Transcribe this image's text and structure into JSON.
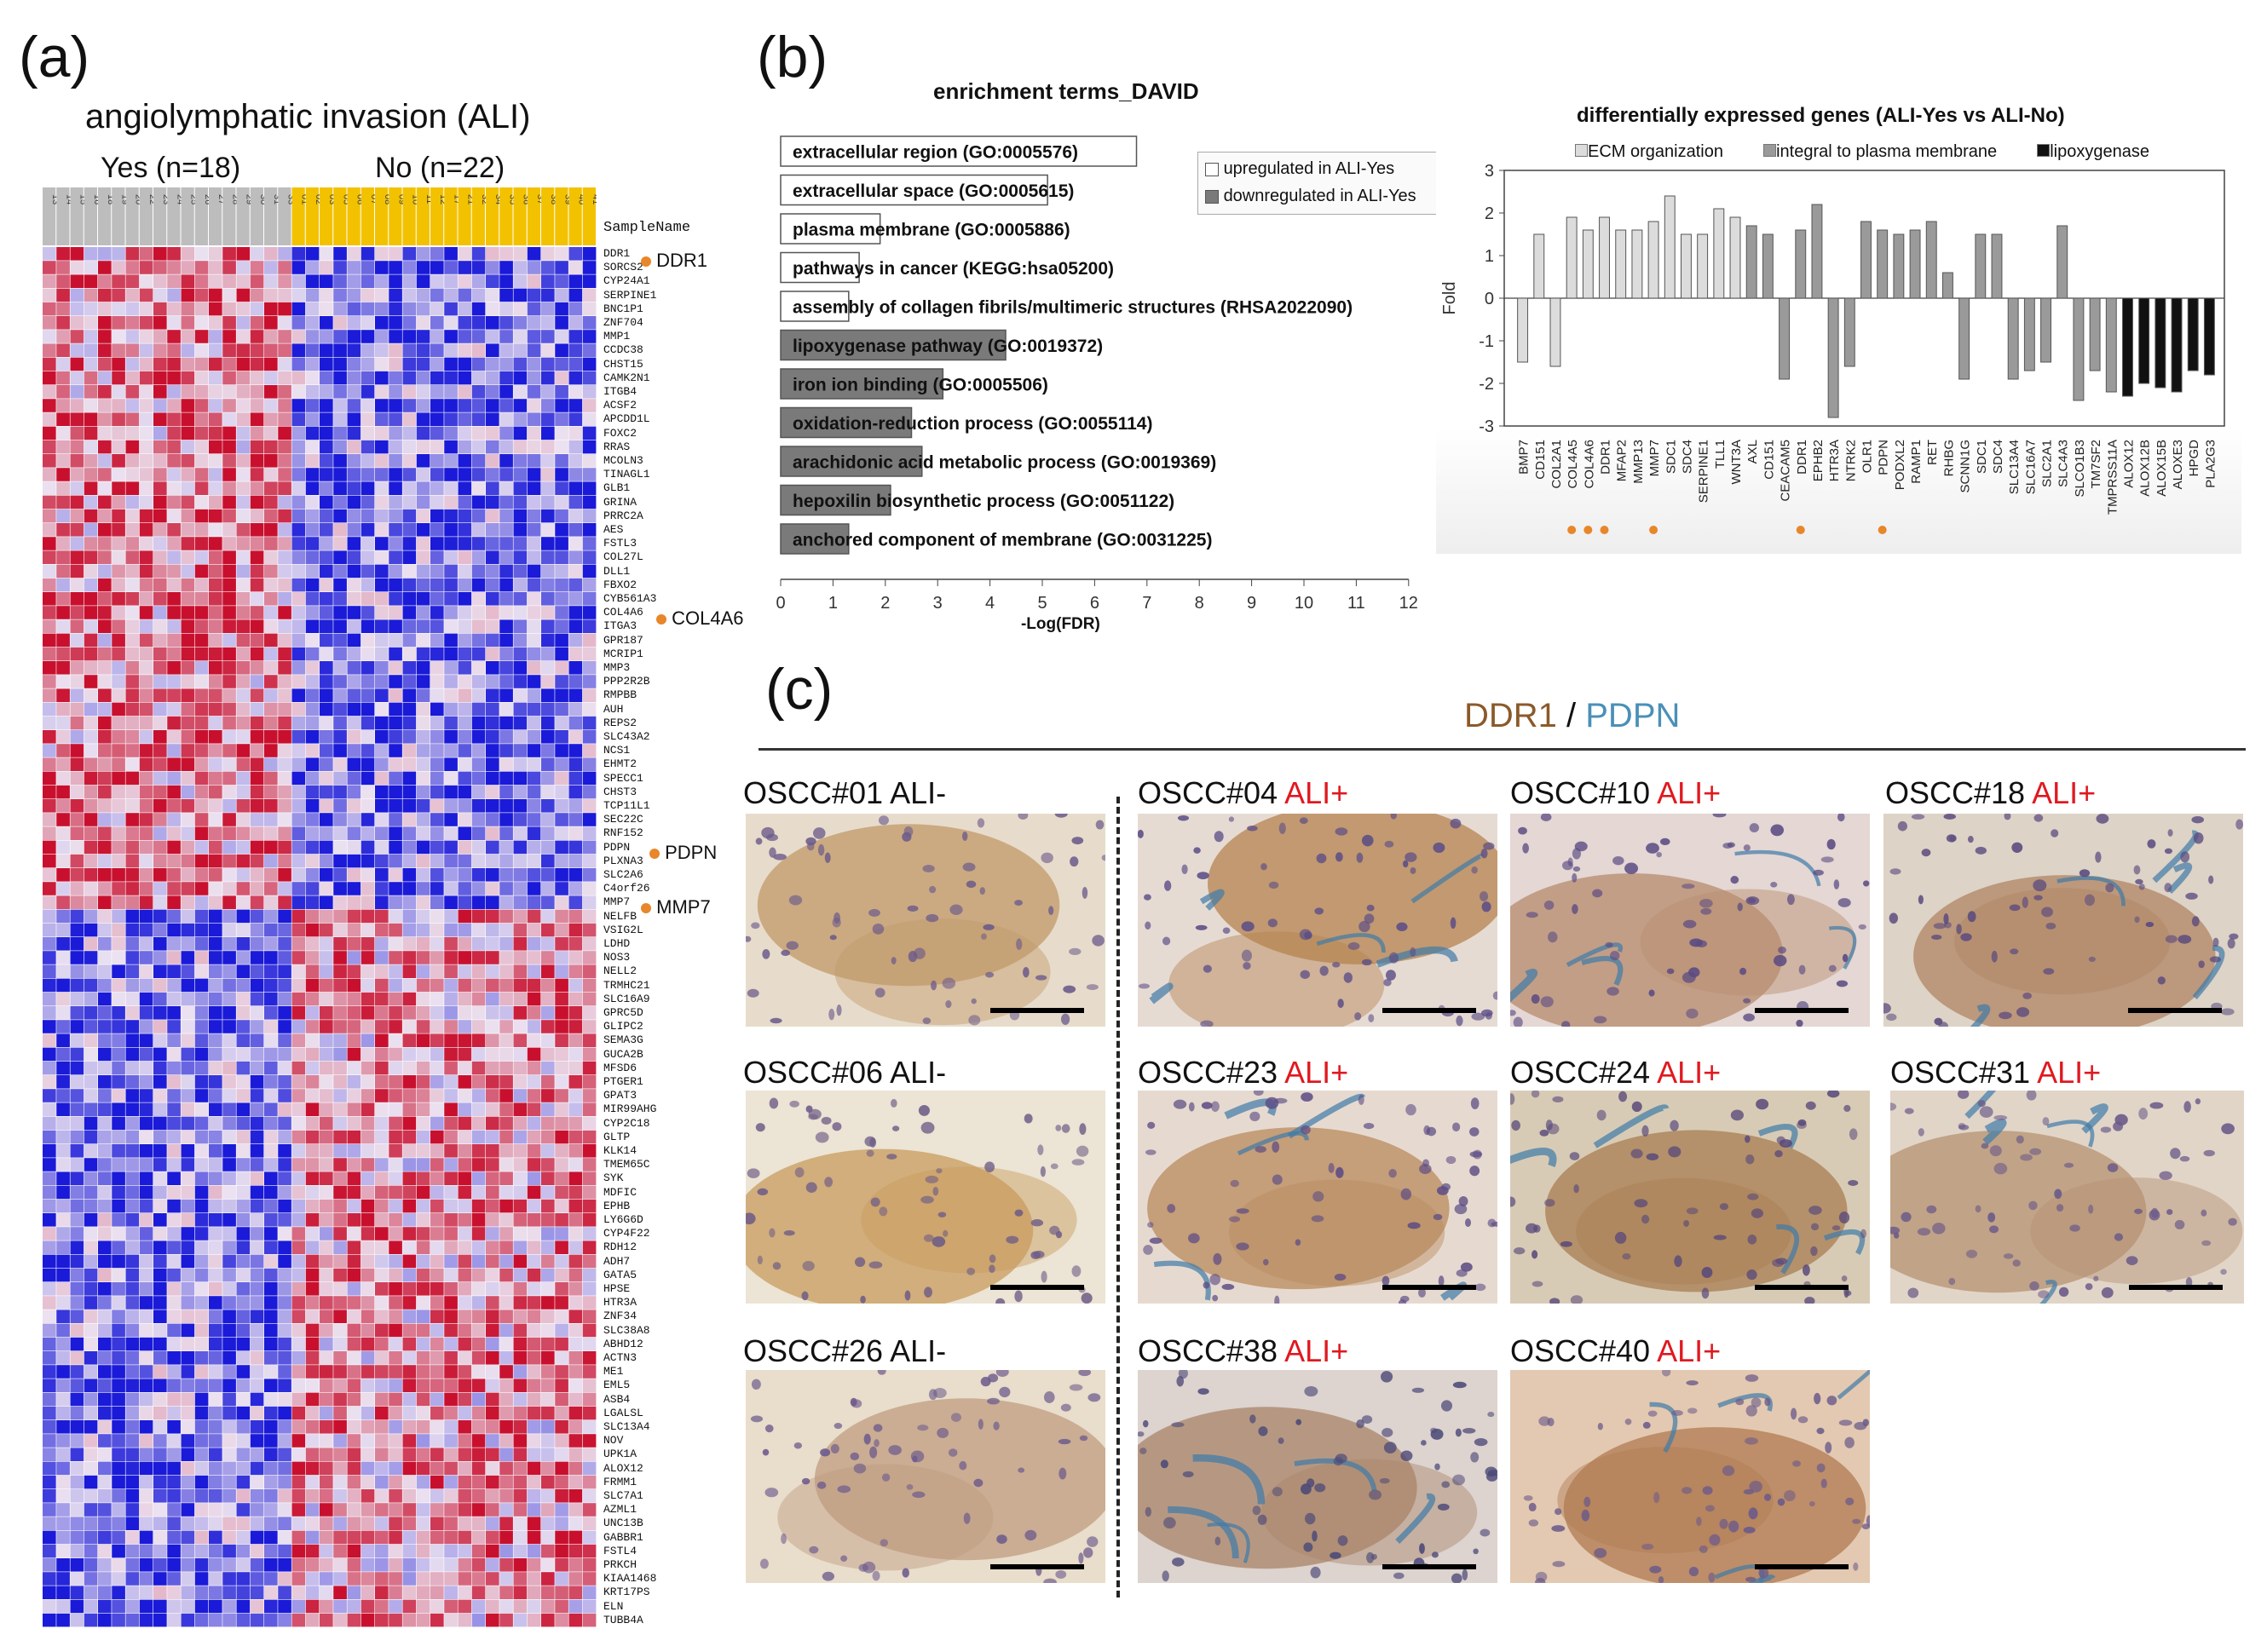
{
  "panels": {
    "a": "(a)",
    "b": "(b)",
    "c": "(c)"
  },
  "heatmap": {
    "title": "angiolymphatic invasion (ALI)",
    "group_yes": "Yes (n=18)",
    "group_no": "No (n=22)",
    "sample_header": "SampleName",
    "yes_color": "#bdbdbd",
    "no_color": "#f2c200",
    "high_color": "#c8102e",
    "low_color": "#1a1ad8",
    "genes": [
      "DDR1",
      "SORCS2",
      "CYP24A1",
      "SERPINE1",
      "BNC1P1",
      "ZNF704",
      "MMP1",
      "CCDC38",
      "CHST15",
      "CAMK2N1",
      "ITGB4",
      "ACSF2",
      "APCDD1L",
      "FOXC2",
      "RRAS",
      "MCOLN3",
      "TINAGL1",
      "GLB1",
      "GRINA",
      "PRRC2A",
      "AES",
      "FSTL3",
      "COL27L",
      "DLL1",
      "FBXO2",
      "CYB561A3",
      "COL4A6",
      "ITGA3",
      "GPR187",
      "MCRIP1",
      "MMP3",
      "PPP2R2B",
      "RMPBB",
      "AUH",
      "REPS2",
      "SLC43A2",
      "NCS1",
      "EHMT2",
      "SPECC1",
      "CHST3",
      "TCP11L1",
      "SEC22C",
      "RNF152",
      "PDPN",
      "PLXNA3",
      "SLC2A6",
      "C4orf26",
      "MMP7",
      "NELFB",
      "VSIG2L",
      "LDHD",
      "NOS3",
      "NELL2",
      "TRMHC21",
      "SLC16A9",
      "GPRC5D",
      "GLIPC2",
      "SEMA3G",
      "GUCA2B",
      "MFSD6",
      "PTGER1",
      "GPAT3",
      "MIR99AHG",
      "CYP2C18",
      "GLTP",
      "KLK14",
      "TMEM65C",
      "SYK",
      "MDFIC",
      "EPHB",
      "LY6G6D",
      "CYP4F22",
      "RDH12",
      "ADH7",
      "GATA5",
      "HPSE",
      "HTR3A",
      "ZNF34",
      "SLC38A8",
      "ABHD12",
      "ACTN3",
      "ME1",
      "EML5",
      "ASB4",
      "LGALSL",
      "SLC13A4",
      "NOV",
      "UPK1A",
      "ALOX12",
      "FRMM1",
      "SLC7A1",
      "AZML1",
      "UNC13B",
      "GABBR1",
      "FSTL4",
      "PRKCH",
      "KIAA1468",
      "KRT17PS",
      "ELN",
      "TUBB4A"
    ],
    "callouts": {
      "ddr1": "DDR1",
      "col4a6": "COL4A6",
      "pdpn": "PDPN",
      "mmp7": "MMP7"
    },
    "yes_ids": [
      "13",
      "14",
      "15",
      "16",
      "18",
      "19",
      "20",
      "22",
      "23",
      "24",
      "25",
      "26",
      "27",
      "28",
      "29",
      "30",
      "31",
      "33"
    ],
    "no_ids": [
      "01",
      "02",
      "03",
      "05",
      "06",
      "07",
      "08",
      "09",
      "10",
      "11",
      "12",
      "17",
      "21",
      "32",
      "34",
      "35",
      "36",
      "37",
      "38",
      "39",
      "40",
      "41"
    ]
  },
  "enrichment": {
    "title": "enrichment terms_DAVID",
    "xlabel": "-Log(FDR)",
    "legend_up": "upregulated in ALI-Yes",
    "legend_down": "downregulated in ALI-Yes",
    "ticks": [
      "0",
      "1",
      "2",
      "3",
      "4",
      "5",
      "6",
      "7",
      "8",
      "9",
      "10",
      "11",
      "12"
    ],
    "chart_data": {
      "type": "bar",
      "orientation": "horizontal",
      "xlim": [
        0,
        12
      ],
      "terms": [
        {
          "label": "extracellular region (GO:0005576)",
          "value": 6.8,
          "direction": "up"
        },
        {
          "label": "extracellular space (GO:0005615)",
          "value": 5.1,
          "direction": "up"
        },
        {
          "label": "plasma membrane (GO:0005886)",
          "value": 1.9,
          "direction": "up"
        },
        {
          "label": "pathways in cancer (KEGG:hsa05200)",
          "value": 1.5,
          "direction": "up"
        },
        {
          "label": "assembly of collagen fibrils/multimeric structures (RHSA2022090)",
          "value": 1.3,
          "direction": "up"
        },
        {
          "label": "lipoxygenase pathway (GO:0019372)",
          "value": 4.3,
          "direction": "down"
        },
        {
          "label": "iron ion binding (GO:0005506)",
          "value": 3.1,
          "direction": "down"
        },
        {
          "label": "oxidation-reduction process (GO:0055114)",
          "value": 2.5,
          "direction": "down"
        },
        {
          "label": "arachidonic acid metabolic process (GO:0019369)",
          "value": 2.7,
          "direction": "down"
        },
        {
          "label": "hepoxilin biosynthetic process (GO:0051122)",
          "value": 2.1,
          "direction": "down"
        },
        {
          "label": "anchored component of membrane (GO:0031225)",
          "value": 1.3,
          "direction": "down"
        }
      ]
    }
  },
  "deg": {
    "title": "differentially expressed genes (ALI-Yes vs ALI-No)",
    "ylabel": "Fold",
    "legend": {
      "ecm": "ECM organization",
      "membrane": "integral to plasma membrane",
      "lox": "lipoxygenase"
    },
    "colors": {
      "ecm": "#dcdcdc",
      "membrane": "#9a9a9a",
      "lox": "#111111"
    },
    "yticks": [
      "3",
      "2",
      "1",
      "0",
      "-1",
      "-2",
      "-3"
    ],
    "chart_data": {
      "type": "bar",
      "ylim": [
        -3,
        3
      ],
      "categories": [
        "BMP7",
        "CD151",
        "COL2A1",
        "COL4A5",
        "COL4A6",
        "DDR1",
        "MFAP2",
        "MMP13",
        "MMP7",
        "SDC1",
        "SDC4",
        "SERPINE1",
        "TLL1",
        "WNT3A",
        "AXL",
        "CD151",
        "CEACAM5",
        "DDR1",
        "EPHB2",
        "HTR3A",
        "NTRK2",
        "OLR1",
        "PDPN",
        "PODXL2",
        "RAMP1",
        "RET",
        "RHBG",
        "SCNN1G",
        "SDC1",
        "SDC4",
        "SLC13A4",
        "SLC16A7",
        "SLC2A1",
        "SLC4A3",
        "SLCO1B3",
        "TM7SF2",
        "TMPRSS11A",
        "ALOX12",
        "ALOX12B",
        "ALOX15B",
        "ALOXE3",
        "HPGD",
        "PLA2G3"
      ],
      "values": [
        -1.5,
        1.5,
        -1.6,
        1.9,
        1.6,
        1.9,
        1.6,
        1.6,
        1.8,
        2.4,
        1.5,
        1.5,
        2.1,
        1.9,
        1.7,
        1.5,
        -1.9,
        1.6,
        2.2,
        -2.8,
        -1.6,
        1.8,
        1.6,
        1.5,
        1.6,
        1.8,
        0.6,
        -1.9,
        1.5,
        1.5,
        -1.9,
        -1.7,
        -1.5,
        1.7,
        -2.4,
        -1.7,
        -2.2,
        -2.3,
        -2.0,
        -2.1,
        -2.2,
        -1.7,
        -1.8
      ],
      "groups": [
        "ecm",
        "ecm",
        "ecm",
        "ecm",
        "ecm",
        "ecm",
        "ecm",
        "ecm",
        "ecm",
        "ecm",
        "ecm",
        "ecm",
        "ecm",
        "ecm",
        "membrane",
        "membrane",
        "membrane",
        "membrane",
        "membrane",
        "membrane",
        "membrane",
        "membrane",
        "membrane",
        "membrane",
        "membrane",
        "membrane",
        "membrane",
        "membrane",
        "membrane",
        "membrane",
        "membrane",
        "membrane",
        "membrane",
        "membrane",
        "membrane",
        "membrane",
        "membrane",
        "lox",
        "lox",
        "lox",
        "lox",
        "lox",
        "lox"
      ],
      "highlighted": [
        false,
        false,
        false,
        true,
        true,
        true,
        false,
        false,
        true,
        false,
        false,
        false,
        false,
        false,
        false,
        false,
        false,
        true,
        false,
        false,
        false,
        false,
        true,
        false,
        false,
        false,
        false,
        false,
        false,
        false,
        false,
        false,
        false,
        false,
        false,
        false,
        false,
        false,
        false,
        false,
        false,
        false,
        false
      ]
    }
  },
  "ihc": {
    "stain_a": "DDR1",
    "slash": " / ",
    "stain_b": "PDPN",
    "stain_a_color": "#8b5a2b",
    "stain_b_color": "#4a90b8",
    "tiles": [
      {
        "id": "OSCC#01",
        "status": "ALI-"
      },
      {
        "id": "OSCC#06",
        "status": "ALI-"
      },
      {
        "id": "OSCC#26",
        "status": "ALI-"
      },
      {
        "id": "OSCC#04",
        "status": "ALI+"
      },
      {
        "id": "OSCC#10",
        "status": "ALI+"
      },
      {
        "id": "OSCC#18",
        "status": "ALI+"
      },
      {
        "id": "OSCC#23",
        "status": "ALI+"
      },
      {
        "id": "OSCC#24",
        "status": "ALI+"
      },
      {
        "id": "OSCC#31",
        "status": "ALI+"
      },
      {
        "id": "OSCC#38",
        "status": "ALI+"
      },
      {
        "id": "OSCC#40",
        "status": "ALI+"
      }
    ]
  }
}
